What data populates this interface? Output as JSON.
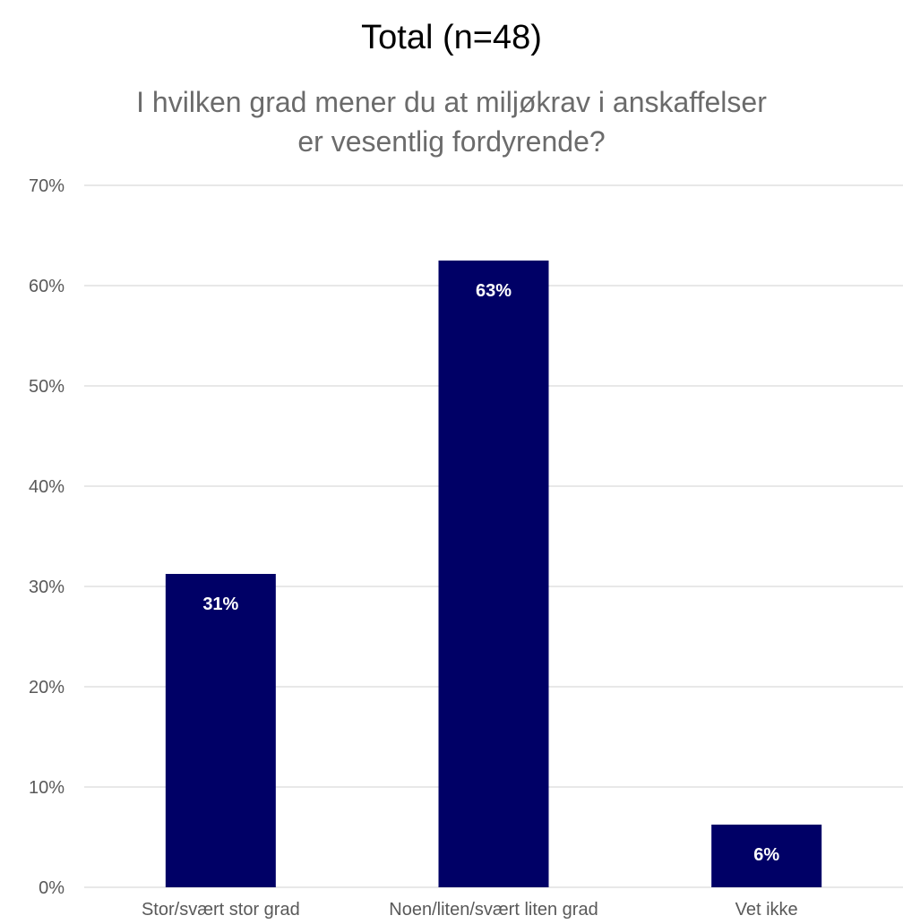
{
  "chart_data": {
    "type": "bar",
    "title": "Total (n=48)",
    "subtitle_lines": [
      "I hvilken grad mener du at miljøkrav i anskaffelser",
      "er vesentlig fordyrende?"
    ],
    "categories": [
      "Stor/svært stor grad",
      "Noen/liten/svært liten grad",
      "Vet ikke"
    ],
    "values": [
      31.25,
      62.5,
      6.25
    ],
    "data_labels": [
      "31%",
      "63%",
      "6%"
    ],
    "ylim": [
      0,
      70
    ],
    "yticks": [
      0,
      10,
      20,
      30,
      40,
      50,
      60,
      70
    ],
    "ytick_labels": [
      "0%",
      "10%",
      "20%",
      "30%",
      "40%",
      "50%",
      "60%",
      "70%"
    ],
    "grid": true,
    "bar_color": "#000066",
    "grid_color": "#d9d9d9"
  }
}
